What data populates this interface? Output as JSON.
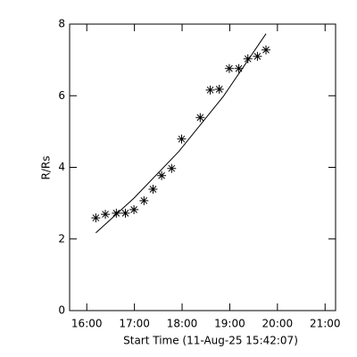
{
  "chart_data": {
    "type": "scatter",
    "xlabel": "Start Time (11-Aug-25 15:42:07)",
    "ylabel": "R/Rs",
    "xlim": [
      15.64,
      21.22
    ],
    "ylim": [
      0,
      8
    ],
    "xticks": [
      {
        "value": 16,
        "label": "16:00"
      },
      {
        "value": 17,
        "label": "17:00"
      },
      {
        "value": 18,
        "label": "18:00"
      },
      {
        "value": 19,
        "label": "19:00"
      },
      {
        "value": 20,
        "label": "20:00"
      },
      {
        "value": 21,
        "label": "21:00"
      }
    ],
    "yticks": [
      0,
      2,
      4,
      6,
      8
    ],
    "color": "#000000",
    "series": [
      {
        "kind": "points",
        "x": [
          16.19,
          16.39,
          16.62,
          16.81,
          16.99,
          17.2,
          17.39,
          17.57,
          17.78,
          17.99,
          18.38,
          18.59,
          18.78,
          18.99,
          19.19,
          19.38,
          19.58,
          19.76
        ],
        "values": [
          2.59,
          2.69,
          2.72,
          2.72,
          2.82,
          3.07,
          3.39,
          3.77,
          3.97,
          4.79,
          5.39,
          6.16,
          6.18,
          6.76,
          6.76,
          7.03,
          7.1,
          7.28
        ]
      },
      {
        "kind": "line",
        "x": [
          16.19,
          16.99,
          17.93,
          18.87,
          19.76
        ],
        "values": [
          2.17,
          3.14,
          4.44,
          5.99,
          7.73
        ]
      }
    ]
  }
}
